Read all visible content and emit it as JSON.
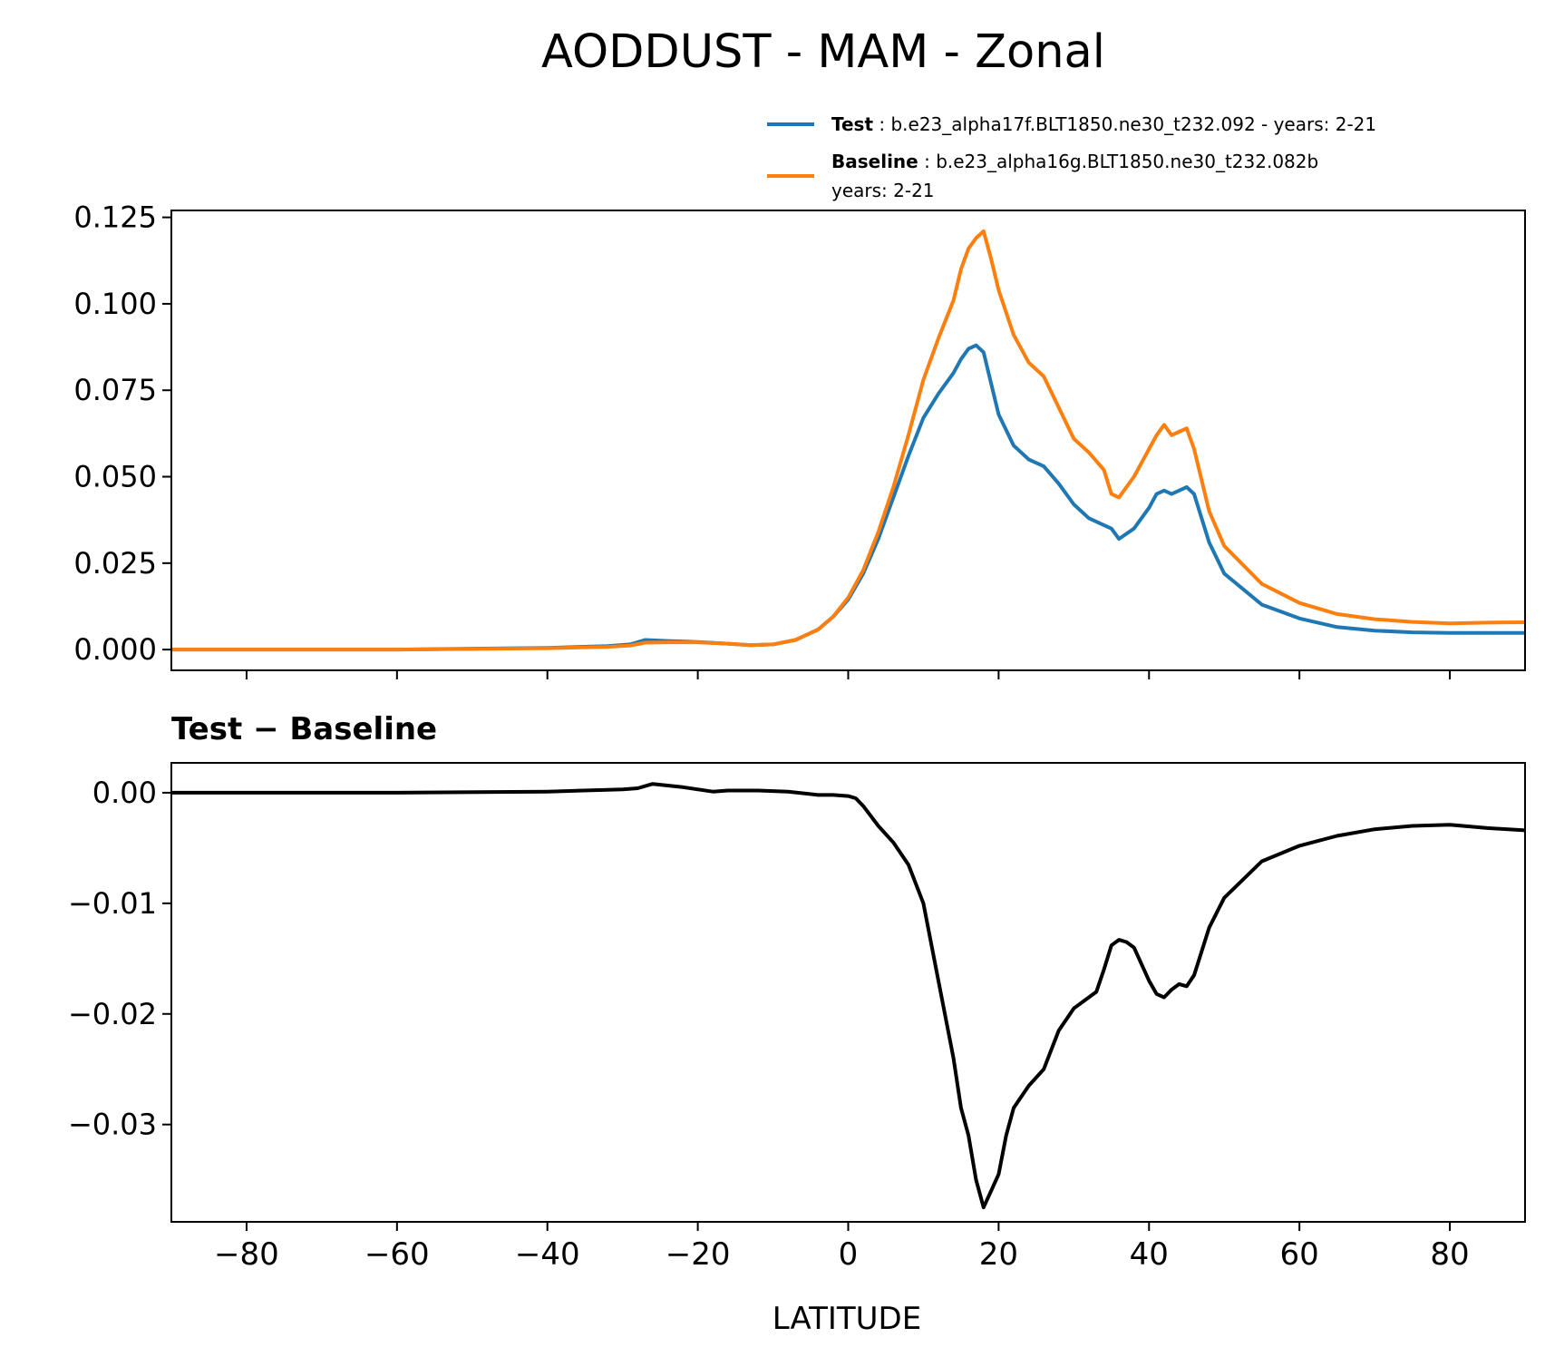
{
  "title": "AODDUST - MAM - Zonal",
  "legend": {
    "test_label": "Test",
    "test_text": " : b.e23_alpha17f.BLT1850.ne30_t232.092 - years: 2-21",
    "baseline_label": "Baseline",
    "baseline_text": " : b.e23_alpha16g.BLT1850.ne30_t232.082b",
    "baseline_text2": "years: 2-21"
  },
  "subplot_title": "Test − Baseline",
  "xlabel": "LATITUDE",
  "colors": {
    "test": "#1f77b4",
    "baseline": "#ff7f0e",
    "diff": "#000000"
  },
  "chart_data": [
    {
      "type": "line",
      "title": "AODDUST - MAM - Zonal",
      "xlim": [
        -90,
        90
      ],
      "ylim": [
        -0.006,
        0.127
      ],
      "xticks": [
        -80,
        -60,
        -40,
        -20,
        0,
        20,
        40,
        60,
        80
      ],
      "yticks": [
        0.0,
        0.025,
        0.05,
        0.075,
        0.1,
        0.125
      ],
      "ytick_labels": [
        "0.000",
        "0.025",
        "0.050",
        "0.075",
        "0.100",
        "0.125"
      ],
      "grid": false,
      "legend_position": "above-right",
      "series": [
        {
          "name": "Test",
          "x": [
            -90,
            -60,
            -40,
            -32,
            -29,
            -27,
            -24,
            -20,
            -16,
            -13,
            -10,
            -7,
            -4,
            -2,
            0,
            2,
            4,
            6,
            8,
            10,
            12,
            14,
            15,
            16,
            17,
            18,
            19,
            20,
            22,
            24,
            26,
            28,
            30,
            32,
            34,
            35,
            36,
            38,
            40,
            41,
            42,
            43,
            44,
            45,
            46,
            48,
            50,
            55,
            60,
            65,
            70,
            75,
            80,
            85,
            90
          ],
          "y": [
            0.0,
            0.0,
            0.0005,
            0.001,
            0.0015,
            0.0028,
            0.0025,
            0.0022,
            0.0017,
            0.0013,
            0.0015,
            0.0028,
            0.0058,
            0.0095,
            0.0145,
            0.022,
            0.032,
            0.044,
            0.056,
            0.067,
            0.074,
            0.08,
            0.084,
            0.087,
            0.088,
            0.086,
            0.077,
            0.068,
            0.059,
            0.055,
            0.053,
            0.048,
            0.042,
            0.038,
            0.036,
            0.035,
            0.032,
            0.035,
            0.041,
            0.045,
            0.046,
            0.045,
            0.046,
            0.047,
            0.045,
            0.031,
            0.022,
            0.013,
            0.009,
            0.0065,
            0.0055,
            0.005,
            0.0048,
            0.0048,
            0.0048
          ]
        },
        {
          "name": "Baseline",
          "x": [
            -90,
            -60,
            -40,
            -32,
            -29,
            -27,
            -24,
            -20,
            -16,
            -13,
            -10,
            -7,
            -4,
            -2,
            0,
            2,
            4,
            6,
            8,
            10,
            12,
            14,
            15,
            16,
            17,
            18,
            19,
            20,
            22,
            24,
            26,
            28,
            30,
            32,
            34,
            35,
            36,
            38,
            40,
            41,
            42,
            43,
            44,
            45,
            46,
            48,
            50,
            55,
            60,
            65,
            70,
            75,
            80,
            85,
            90
          ],
          "y": [
            0.0,
            0.0,
            0.0004,
            0.0008,
            0.0012,
            0.002,
            0.0021,
            0.0021,
            0.0017,
            0.0013,
            0.0015,
            0.0028,
            0.0058,
            0.0095,
            0.015,
            0.023,
            0.034,
            0.047,
            0.062,
            0.078,
            0.09,
            0.101,
            0.11,
            0.116,
            0.119,
            0.121,
            0.113,
            0.104,
            0.091,
            0.083,
            0.079,
            0.07,
            0.061,
            0.057,
            0.052,
            0.045,
            0.044,
            0.05,
            0.058,
            0.062,
            0.065,
            0.062,
            0.063,
            0.064,
            0.058,
            0.04,
            0.03,
            0.019,
            0.0135,
            0.0103,
            0.0088,
            0.008,
            0.0076,
            0.0078,
            0.0079
          ]
        }
      ]
    },
    {
      "type": "line",
      "title": "Test − Baseline",
      "xlabel": "LATITUDE",
      "xlim": [
        -90,
        90
      ],
      "ylim": [
        -0.0388,
        0.0027
      ],
      "xticks": [
        -80,
        -60,
        -40,
        -20,
        0,
        20,
        40,
        60,
        80
      ],
      "xtick_labels": [
        "−80",
        "−60",
        "−40",
        "−20",
        "0",
        "20",
        "40",
        "60",
        "80"
      ],
      "yticks": [
        0.0,
        -0.01,
        -0.02,
        -0.03
      ],
      "ytick_labels": [
        "0.00",
        "−0.01",
        "−0.02",
        "−0.03"
      ],
      "grid": false,
      "series": [
        {
          "x": [
            -90,
            -60,
            -40,
            -30,
            -28,
            -26,
            -22,
            -18,
            -16,
            -12,
            -8,
            -4,
            -2,
            0,
            1,
            2,
            4,
            6,
            8,
            10,
            12,
            14,
            15,
            16,
            17,
            18,
            19,
            20,
            21,
            22,
            24,
            26,
            28,
            30,
            32,
            33,
            34,
            35,
            36,
            37,
            38,
            40,
            41,
            42,
            43,
            44,
            45,
            46,
            48,
            50,
            55,
            60,
            65,
            70,
            75,
            80,
            85,
            90
          ],
          "y": [
            0.0,
            0.0,
            0.0001,
            0.0003,
            0.0004,
            0.0008,
            0.0005,
            0.0001,
            0.0002,
            0.0002,
            0.0001,
            -0.0002,
            -0.0002,
            -0.0003,
            -0.0005,
            -0.0012,
            -0.003,
            -0.0045,
            -0.0065,
            -0.01,
            -0.017,
            -0.024,
            -0.0285,
            -0.031,
            -0.035,
            -0.0375,
            -0.036,
            -0.0345,
            -0.031,
            -0.0285,
            -0.0265,
            -0.025,
            -0.0215,
            -0.0195,
            -0.0185,
            -0.018,
            -0.016,
            -0.0138,
            -0.0133,
            -0.0135,
            -0.014,
            -0.017,
            -0.0182,
            -0.0185,
            -0.0178,
            -0.0173,
            -0.0175,
            -0.0165,
            -0.0122,
            -0.0095,
            -0.0062,
            -0.0048,
            -0.0039,
            -0.0033,
            -0.003,
            -0.0029,
            -0.0032,
            -0.0034
          ]
        }
      ]
    }
  ]
}
